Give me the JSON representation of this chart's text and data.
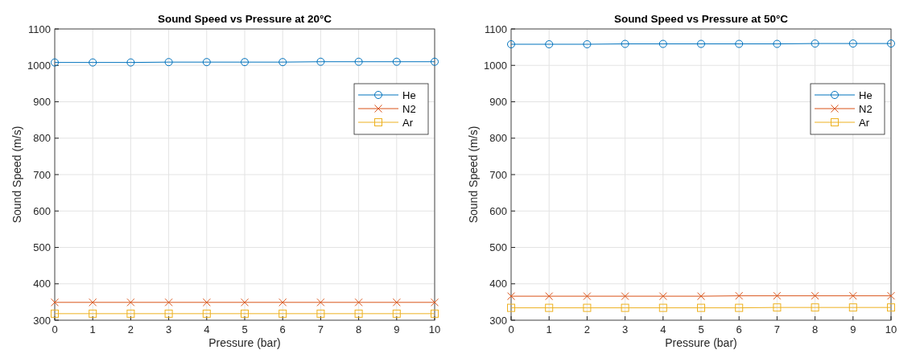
{
  "chart_data": [
    {
      "type": "line",
      "title": "Sound Speed vs Pressure at 20°C",
      "xlabel": "Pressure (bar)",
      "ylabel": "Sound Speed (m/s)",
      "x": [
        0,
        1,
        2,
        3,
        4,
        5,
        6,
        7,
        8,
        9,
        10
      ],
      "xlim": [
        0,
        10
      ],
      "xticks": [
        0,
        1,
        2,
        3,
        4,
        5,
        6,
        7,
        8,
        9,
        10
      ],
      "ylim": [
        300,
        1100
      ],
      "yticks": [
        300,
        400,
        500,
        600,
        700,
        800,
        900,
        1000,
        1100
      ],
      "grid": true,
      "legend": "top right",
      "series": [
        {
          "name": "He",
          "color": "#0072bd",
          "marker": "circle",
          "values": [
            1008,
            1008,
            1008,
            1009,
            1009,
            1009,
            1009,
            1010,
            1010,
            1010,
            1010
          ]
        },
        {
          "name": "N2",
          "color": "#d95319",
          "marker": "cross",
          "values": [
            349,
            349,
            349,
            349,
            349,
            349,
            349,
            349,
            349,
            349,
            349
          ]
        },
        {
          "name": "Ar",
          "color": "#edb120",
          "marker": "square",
          "values": [
            318,
            318,
            318,
            318,
            318,
            318,
            318,
            318,
            318,
            318,
            318
          ]
        }
      ]
    },
    {
      "type": "line",
      "title": "Sound Speed vs Pressure at 50°C",
      "xlabel": "Pressure (bar)",
      "ylabel": "Sound Speed (m/s)",
      "x": [
        0,
        1,
        2,
        3,
        4,
        5,
        6,
        7,
        8,
        9,
        10
      ],
      "xlim": [
        0,
        10
      ],
      "xticks": [
        0,
        1,
        2,
        3,
        4,
        5,
        6,
        7,
        8,
        9,
        10
      ],
      "ylim": [
        300,
        1100
      ],
      "yticks": [
        300,
        400,
        500,
        600,
        700,
        800,
        900,
        1000,
        1100
      ],
      "grid": true,
      "legend": "top right",
      "series": [
        {
          "name": "He",
          "color": "#0072bd",
          "marker": "circle",
          "values": [
            1058,
            1058,
            1058,
            1059,
            1059,
            1059,
            1059,
            1059,
            1060,
            1060,
            1060
          ]
        },
        {
          "name": "N2",
          "color": "#d95319",
          "marker": "cross",
          "values": [
            366,
            366,
            366,
            366,
            366,
            366,
            367,
            367,
            367,
            367,
            367
          ]
        },
        {
          "name": "Ar",
          "color": "#edb120",
          "marker": "square",
          "values": [
            334,
            334,
            334,
            334,
            334,
            334,
            334,
            335,
            335,
            335,
            335
          ]
        }
      ]
    }
  ]
}
